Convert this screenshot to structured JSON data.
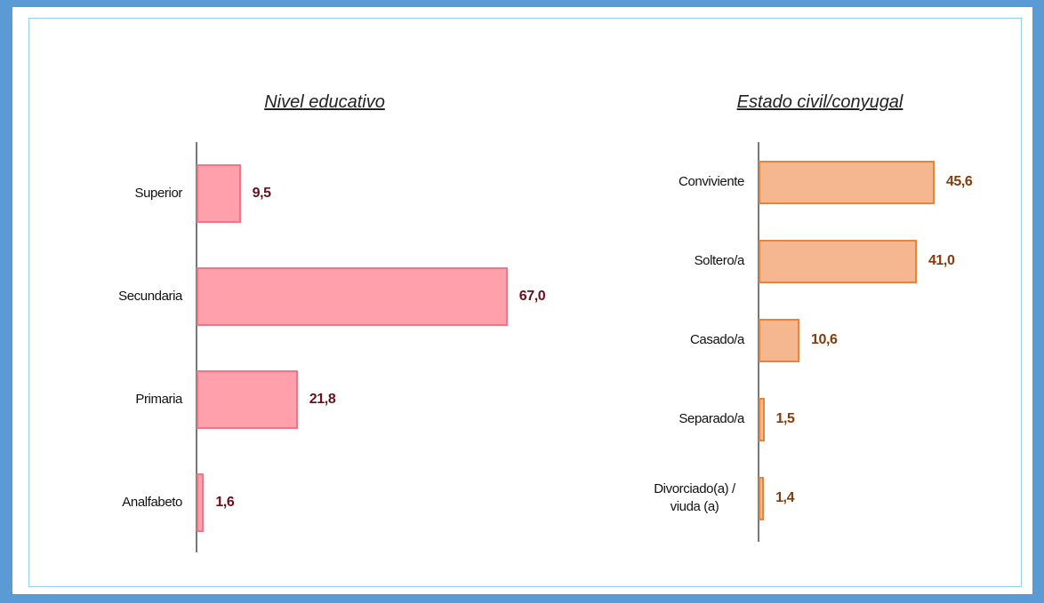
{
  "chart_data": [
    {
      "type": "bar",
      "orientation": "horizontal",
      "title": "Nivel educativo",
      "categories": [
        "Superior",
        "Secundaria",
        "Primaria",
        "Analfabeto"
      ],
      "values": [
        9.5,
        67.0,
        21.8,
        1.6
      ],
      "value_labels": [
        "9,5",
        "67,0",
        "21,8",
        "1,6"
      ],
      "color": "#ffa0ab",
      "edge_color": "#f07585",
      "label_color": "#6b0f1a"
    },
    {
      "type": "bar",
      "orientation": "horizontal",
      "title": "Estado civil/conyugal",
      "categories": [
        "Conviviente",
        "Soltero/a",
        "Casado/a",
        "Separado/a",
        "Divorciado(a) / viuda (a)"
      ],
      "values": [
        45.6,
        41.0,
        10.6,
        1.5,
        1.4
      ],
      "value_labels": [
        "45,6",
        "41,0",
        "10,6",
        "1,5",
        "1,4"
      ],
      "color": "#f4b78f",
      "edge_color": "#e8833a",
      "label_color": "#843c0c"
    }
  ]
}
